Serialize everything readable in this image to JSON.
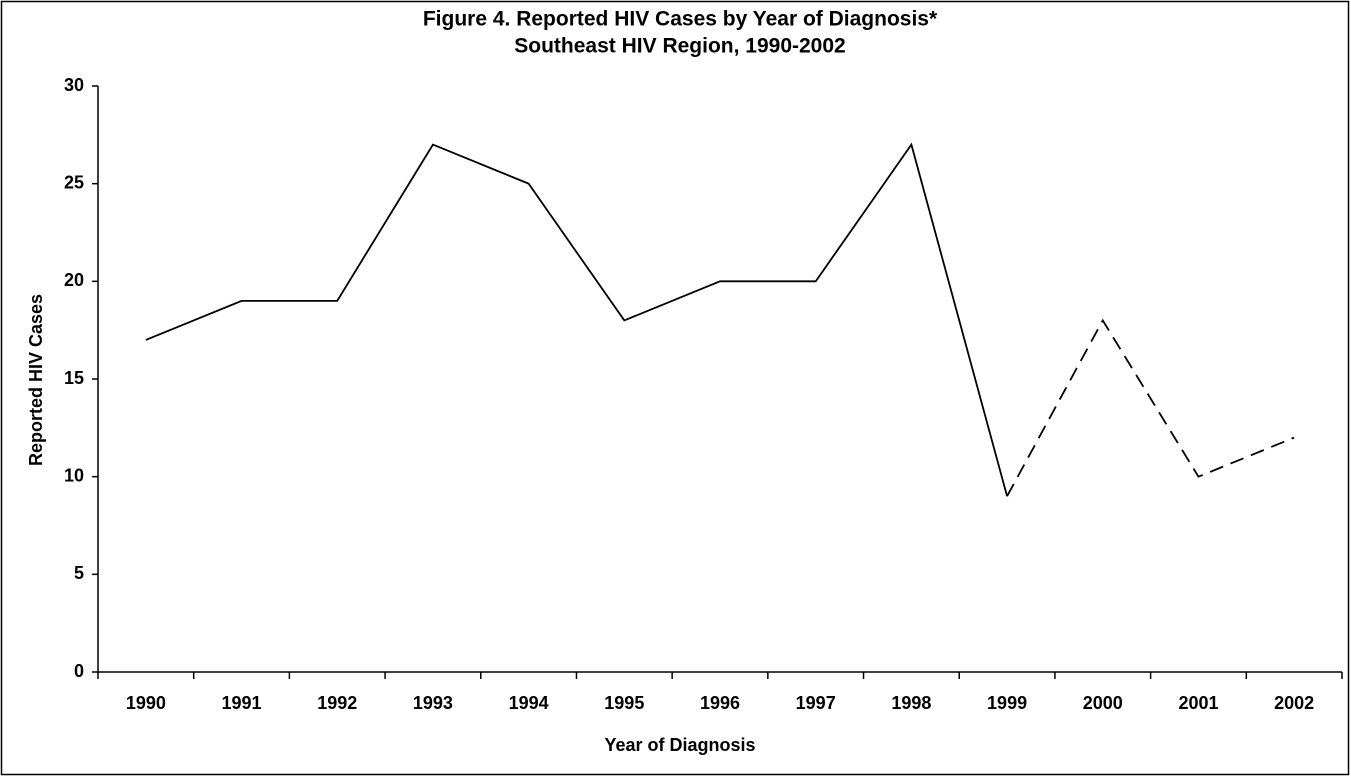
{
  "chart_data": {
    "type": "line",
    "title": "Figure 4.  Reported HIV Cases by Year of Diagnosis*",
    "subtitle": "Southeast HIV Region, 1990-2002",
    "x_label": "Year of Diagnosis",
    "y_label": "Reported HIV Cases",
    "categories": [
      "1990",
      "1991",
      "1992",
      "1993",
      "1994",
      "1995",
      "1996",
      "1997",
      "1998",
      "1999",
      "2000",
      "2001",
      "2002"
    ],
    "values": [
      17,
      19,
      19,
      27,
      25,
      18,
      20,
      20,
      27,
      9,
      18,
      10,
      12
    ],
    "segment_styles": [
      "solid",
      "solid",
      "solid",
      "solid",
      "solid",
      "solid",
      "solid",
      "solid",
      "solid",
      "dashed",
      "dashed",
      "dashed"
    ],
    "color": "#000000",
    "ylim": [
      0,
      30
    ],
    "yticks": [
      0,
      5,
      10,
      15,
      20,
      25,
      30
    ],
    "grid": false
  }
}
